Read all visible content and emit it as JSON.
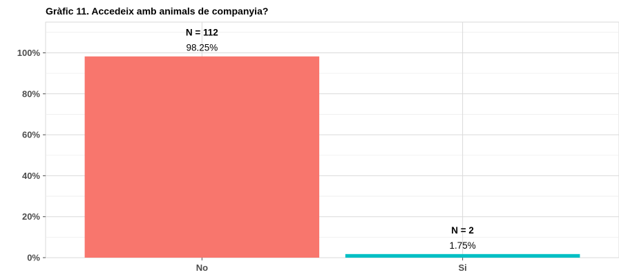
{
  "chart_data": {
    "type": "bar",
    "title": "Gràfic 11. Accedeix amb animals de companyia?",
    "categories": [
      "No",
      "Si"
    ],
    "values": [
      98.25,
      1.75
    ],
    "counts_labels": [
      "N = 112",
      "N = 2"
    ],
    "percent_labels": [
      "98.25%",
      "1.75%"
    ],
    "colors": [
      "#f8766d",
      "#00bfc4"
    ],
    "ylim": [
      0,
      115
    ],
    "yticks": [
      0,
      20,
      40,
      60,
      80,
      100
    ],
    "ytick_labels": [
      "0%",
      "20%",
      "40%",
      "60%",
      "80%",
      "100%"
    ],
    "xlabel": "",
    "ylabel": "",
    "grid": true,
    "legend": "none"
  }
}
